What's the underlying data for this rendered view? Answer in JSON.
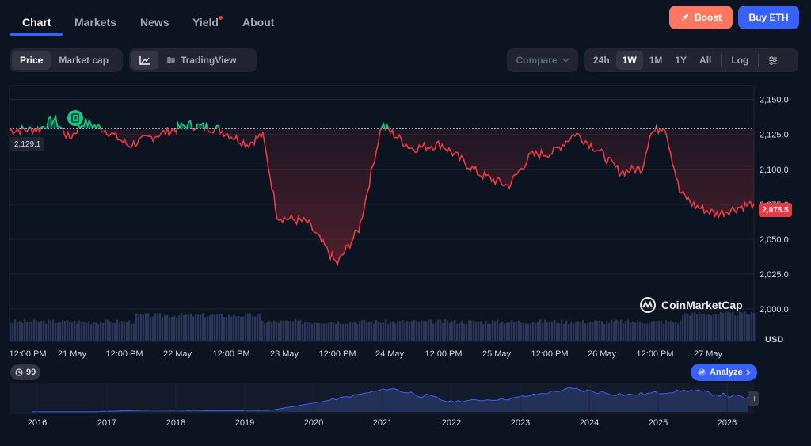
{
  "nav": {
    "tabs": [
      {
        "label": "Chart",
        "active": true
      },
      {
        "label": "Markets"
      },
      {
        "label": "News"
      },
      {
        "label": "Yield"
      },
      {
        "label": "About"
      }
    ],
    "boost_label": "Boost",
    "buy_label": "Buy ETH"
  },
  "toolbar": {
    "metric": [
      "Price",
      "Market cap"
    ],
    "tradingview_label": "TradingView",
    "compare_label": "Compare",
    "ranges": [
      "24h",
      "1W",
      "1M",
      "1Y",
      "All"
    ],
    "active_range": "1W",
    "log_label": "Log"
  },
  "chart": {
    "current_price_label": "2,075.5",
    "reference_price_label": "2,129.1",
    "currency_label": "USD",
    "watermark": "CoinMarketCap",
    "history_count": "99",
    "analyze_label": "Analyze",
    "colors": {
      "up": "#16c784",
      "down": "#ea3943",
      "accent": "#3861fb"
    }
  },
  "chart_data": {
    "type": "line",
    "ylim": [
      2000,
      2160
    ],
    "yticks": [
      "2,150.0",
      "2,125.0",
      "2,100.0",
      "2,075.0",
      "2,050.0",
      "2,025.0",
      "2,000.0"
    ],
    "xticks": [
      "12:00 PM",
      "21 May",
      "12:00 PM",
      "22 May",
      "12:00 PM",
      "23 May",
      "12:00 PM",
      "24 May",
      "12:00 PM",
      "25 May",
      "12:00 PM",
      "26 May",
      "12:00 PM",
      "27 May"
    ],
    "baseline": 2129.1,
    "last": 2075.5,
    "x_points": [
      0,
      0.04,
      0.06,
      0.08,
      0.1,
      0.13,
      0.16,
      0.2,
      0.24,
      0.28,
      0.32,
      0.34,
      0.36,
      0.4,
      0.44,
      0.47,
      0.5,
      0.54,
      0.58,
      0.63,
      0.67,
      0.7,
      0.73,
      0.76,
      0.79,
      0.82,
      0.85,
      0.86,
      0.88,
      0.9,
      0.92,
      0.95,
      0.98,
      1.0
    ],
    "values": [
      2128,
      2129,
      2136,
      2122,
      2134,
      2128,
      2117,
      2125,
      2132,
      2129,
      2118,
      2125,
      2066,
      2062,
      2032,
      2058,
      2132,
      2115,
      2118,
      2097,
      2088,
      2110,
      2112,
      2126,
      2114,
      2098,
      2101,
      2125,
      2132,
      2084,
      2074,
      2068,
      2073,
      2075.5
    ],
    "volume_xlabels": [],
    "navigator_years": [
      "2016",
      "2017",
      "2018",
      "2019",
      "2020",
      "2021",
      "2022",
      "2023",
      "2024",
      "2025",
      "2026"
    ],
    "navigator_values": [
      10,
      12,
      300,
      200,
      250,
      1800,
      3600,
      1600,
      2000,
      3500,
      2600,
      3300,
      2100
    ]
  }
}
